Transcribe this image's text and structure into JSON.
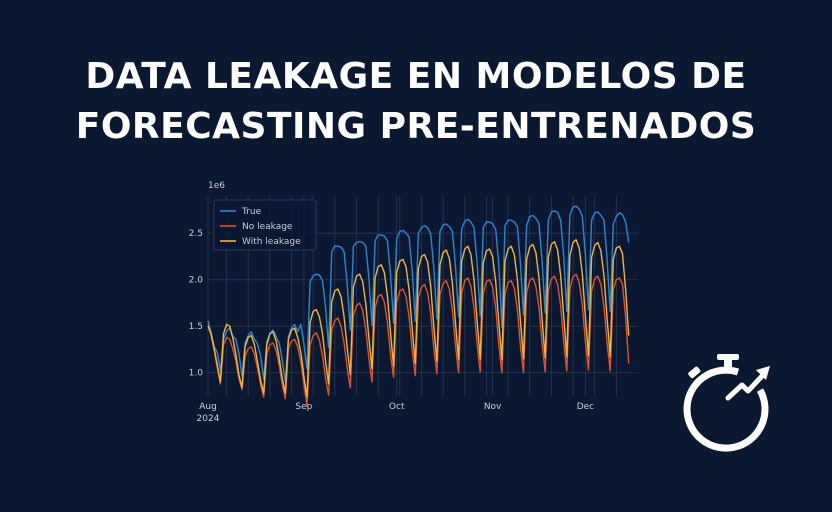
{
  "title": {
    "line1": "DATA LEAKAGE EN MODELOS DE",
    "line2": "FORECASTING PRE-ENTRENADOS"
  },
  "colors": {
    "background": "#0b1832",
    "true": "#2a87d0",
    "no_leakage": "#e0512f",
    "with_leakage": "#f2b534",
    "grid": "#2a3754",
    "text": "#c9ced8"
  },
  "chart_data": {
    "type": "line",
    "title": "",
    "xlabel": "",
    "ylabel": "",
    "offset_label": "1e6",
    "y_ticks": [
      "1.0",
      "1.5",
      "2.0",
      "2.5"
    ],
    "x_ticks": [
      {
        "label": "Aug",
        "sublabel": "2024"
      },
      {
        "label": "Sep",
        "sublabel": ""
      },
      {
        "label": "Oct",
        "sublabel": ""
      },
      {
        "label": "Nov",
        "sublabel": ""
      },
      {
        "label": "Dec",
        "sublabel": ""
      }
    ],
    "x_range": [
      "2024-08-01",
      "2024-12-18"
    ],
    "ylim": [
      0.75,
      2.9
    ],
    "grid": true,
    "legend": "top-left",
    "series": [
      {
        "name": "True",
        "color": "#2a87d0",
        "values": [
          1.56,
          1.43,
          1.28,
          1.22,
          1.02,
          1.36,
          1.45,
          1.48,
          1.39,
          1.36,
          1.21,
          0.96,
          1.32,
          1.4,
          1.44,
          1.36,
          1.31,
          1.18,
          0.93,
          1.33,
          1.42,
          1.46,
          1.39,
          1.32,
          1.14,
          0.9,
          1.38,
          1.48,
          1.52,
          1.44,
          1.52,
          1.31,
          1.04,
          1.98,
          2.04,
          2.06,
          2.05,
          1.99,
          1.7,
          1.27,
          2.3,
          2.36,
          2.36,
          2.35,
          2.3,
          1.95,
          1.46,
          2.36,
          2.4,
          2.41,
          2.4,
          2.36,
          2.02,
          1.51,
          2.42,
          2.48,
          2.48,
          2.47,
          2.42,
          2.06,
          1.53,
          2.44,
          2.52,
          2.53,
          2.5,
          2.46,
          2.09,
          1.55,
          2.5,
          2.56,
          2.58,
          2.56,
          2.49,
          2.13,
          1.58,
          2.52,
          2.59,
          2.6,
          2.57,
          2.52,
          2.15,
          1.6,
          2.55,
          2.63,
          2.65,
          2.62,
          2.56,
          2.18,
          1.61,
          2.56,
          2.62,
          2.62,
          2.6,
          2.54,
          2.16,
          1.49,
          2.58,
          2.64,
          2.64,
          2.62,
          2.57,
          2.18,
          1.62,
          2.58,
          2.68,
          2.69,
          2.66,
          2.6,
          2.2,
          1.64,
          2.64,
          2.73,
          2.74,
          2.72,
          2.64,
          2.24,
          1.66,
          2.7,
          2.78,
          2.79,
          2.76,
          2.68,
          2.27,
          1.68,
          2.64,
          2.72,
          2.73,
          2.69,
          2.64,
          2.22,
          1.66,
          2.6,
          2.68,
          2.72,
          2.7,
          2.62,
          2.4
        ]
      },
      {
        "name": "No leakage",
        "color": "#e0512f",
        "values": [
          1.52,
          1.4,
          1.24,
          1.05,
          0.88,
          1.3,
          1.38,
          1.36,
          1.26,
          1.13,
          0.94,
          0.82,
          1.18,
          1.26,
          1.28,
          1.2,
          1.05,
          0.87,
          0.74,
          1.2,
          1.3,
          1.32,
          1.24,
          1.08,
          0.88,
          0.72,
          1.26,
          1.34,
          1.36,
          1.28,
          1.12,
          0.88,
          0.64,
          1.3,
          1.4,
          1.43,
          1.35,
          1.18,
          0.94,
          0.76,
          1.46,
          1.56,
          1.59,
          1.5,
          1.32,
          1.05,
          0.84,
          1.62,
          1.72,
          1.75,
          1.67,
          1.46,
          1.15,
          0.9,
          1.7,
          1.82,
          1.84,
          1.76,
          1.54,
          1.2,
          0.95,
          1.76,
          1.88,
          1.9,
          1.82,
          1.6,
          1.24,
          0.97,
          1.8,
          1.92,
          1.95,
          1.86,
          1.64,
          1.26,
          0.99,
          1.84,
          1.96,
          1.99,
          1.9,
          1.67,
          1.29,
          1.0,
          1.86,
          1.99,
          2.02,
          1.93,
          1.7,
          1.31,
          1.01,
          1.85,
          1.98,
          2.0,
          1.92,
          1.7,
          1.3,
          1.0,
          1.85,
          1.97,
          1.99,
          1.91,
          1.68,
          1.29,
          1.0,
          1.86,
          1.99,
          2.02,
          1.93,
          1.7,
          1.31,
          1.01,
          1.88,
          2.01,
          2.04,
          1.95,
          1.72,
          1.32,
          1.02,
          1.9,
          2.03,
          2.06,
          1.97,
          1.73,
          1.33,
          1.03,
          1.88,
          2.01,
          2.04,
          1.95,
          1.71,
          1.32,
          1.02,
          1.9,
          2.0,
          2.02,
          1.95,
          1.6,
          1.1
        ]
      },
      {
        "name": "With leakage",
        "color": "#f2b534",
        "values": [
          1.5,
          1.42,
          1.26,
          1.08,
          0.9,
          1.42,
          1.52,
          1.5,
          1.38,
          1.2,
          0.98,
          0.84,
          1.28,
          1.38,
          1.4,
          1.3,
          1.12,
          0.92,
          0.78,
          1.3,
          1.42,
          1.44,
          1.34,
          1.16,
          0.94,
          0.78,
          1.36,
          1.46,
          1.48,
          1.38,
          1.22,
          0.96,
          0.74,
          1.54,
          1.66,
          1.68,
          1.6,
          1.42,
          1.12,
          0.88,
          1.76,
          1.88,
          1.9,
          1.82,
          1.6,
          1.27,
          0.98,
          1.92,
          2.04,
          2.06,
          1.98,
          1.74,
          1.37,
          1.04,
          2.02,
          2.14,
          2.16,
          2.08,
          1.83,
          1.43,
          1.07,
          2.08,
          2.2,
          2.22,
          2.14,
          1.89,
          1.47,
          1.1,
          2.12,
          2.25,
          2.27,
          2.19,
          1.93,
          1.5,
          1.12,
          2.16,
          2.29,
          2.32,
          2.23,
          1.96,
          1.53,
          1.14,
          2.2,
          2.33,
          2.36,
          2.27,
          2.0,
          1.56,
          1.15,
          2.18,
          2.31,
          2.33,
          2.25,
          1.98,
          1.54,
          1.14,
          2.2,
          2.33,
          2.36,
          2.27,
          2.0,
          1.56,
          1.15,
          2.22,
          2.35,
          2.38,
          2.29,
          2.02,
          1.57,
          1.16,
          2.24,
          2.38,
          2.41,
          2.32,
          2.04,
          1.59,
          1.17,
          2.26,
          2.4,
          2.43,
          2.34,
          2.06,
          1.6,
          1.18,
          2.24,
          2.37,
          2.4,
          2.31,
          2.04,
          1.58,
          1.17,
          2.22,
          2.34,
          2.36,
          2.28,
          1.9,
          1.4
        ]
      }
    ]
  }
}
